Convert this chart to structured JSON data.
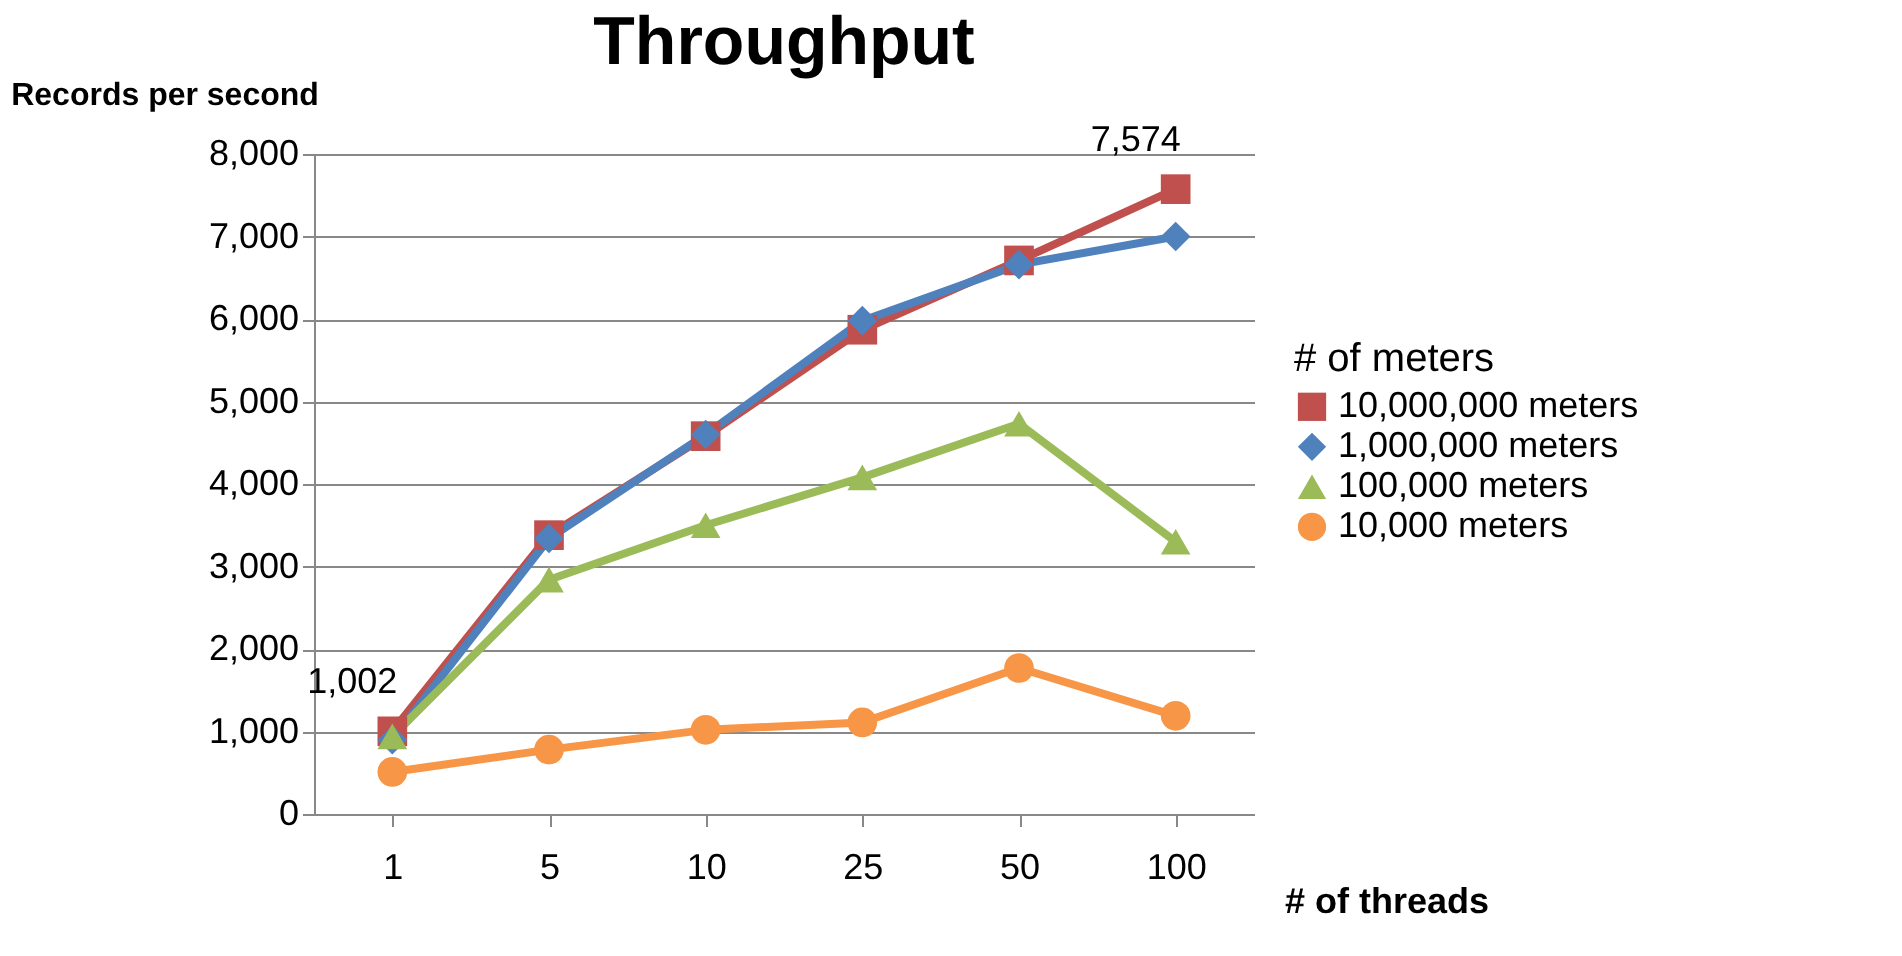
{
  "chart_data": {
    "type": "line",
    "title": "Throughput",
    "ylabel": "Records per second",
    "xlabel": "# of threads",
    "legend_title": "# of meters",
    "legend": "right",
    "grid": "y",
    "categories": [
      "1",
      "5",
      "10",
      "25",
      "50",
      "100"
    ],
    "ylim": [
      0,
      8000
    ],
    "yticks": [
      {
        "value": 0,
        "label": "0"
      },
      {
        "value": 1000,
        "label": "1,000"
      },
      {
        "value": 2000,
        "label": "2,000"
      },
      {
        "value": 3000,
        "label": "3,000"
      },
      {
        "value": 4000,
        "label": "4,000"
      },
      {
        "value": 5000,
        "label": "5,000"
      },
      {
        "value": 6000,
        "label": "6,000"
      },
      {
        "value": 7000,
        "label": "7,000"
      },
      {
        "value": 8000,
        "label": "8,000"
      }
    ],
    "series": [
      {
        "name": "10,000,000 meters",
        "color": "#c0504d",
        "marker": "square",
        "values": [
          1002,
          3380,
          4580,
          5870,
          6710,
          7574
        ],
        "value_labels": [
          "1,002",
          null,
          null,
          null,
          null,
          "7,574"
        ]
      },
      {
        "name": "1,000,000 meters",
        "color": "#4f81bd",
        "marker": "diamond",
        "values": [
          900,
          3340,
          4600,
          5980,
          6660,
          7000
        ]
      },
      {
        "name": "100,000 meters",
        "color": "#9bbb59",
        "marker": "triangle",
        "values": [
          940,
          2840,
          3500,
          4080,
          4730,
          3300
        ]
      },
      {
        "name": "10,000 meters",
        "color": "#f79646",
        "marker": "circle",
        "values": [
          510,
          780,
          1020,
          1110,
          1770,
          1190
        ]
      }
    ]
  }
}
